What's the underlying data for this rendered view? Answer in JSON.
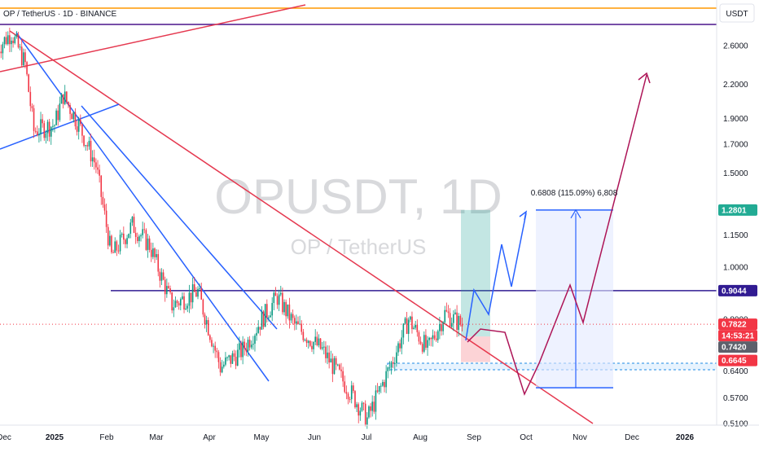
{
  "chart_data": {
    "type": "candlestick",
    "symbol_line": "OP / TetherUS · 1D · BINANCE",
    "watermark": "OPUSDT, 1D",
    "watermark_sub": "OP / TetherUS",
    "currency": "USDT",
    "scale": "log",
    "y_ticks": [
      "2.6000",
      "2.2000",
      "1.9000",
      "1.7000",
      "1.5000",
      "1.1500",
      "1.0000",
      "0.8000",
      "0.6400",
      "0.5700",
      "0.5100"
    ],
    "x_ticks": [
      "Dec",
      "2025",
      "Feb",
      "Mar",
      "Apr",
      "May",
      "Jun",
      "Jul",
      "Aug",
      "Sep",
      "Oct",
      "Nov",
      "Dec",
      "2026"
    ],
    "price_badges": [
      {
        "label": "1.2801",
        "bg": "#22ab94",
        "fg": "#ffffff"
      },
      {
        "label": "0.9044",
        "bg": "#311b92",
        "fg": "#ffffff"
      },
      {
        "label": "0.7822",
        "bg": "#f23645",
        "fg": "#ffffff"
      },
      {
        "label": "14:53:21",
        "bg": "#f23645",
        "fg": "#ffffff"
      },
      {
        "label": "0.7420",
        "bg": "#5d606b",
        "fg": "#ffffff"
      },
      {
        "label": "0.6645",
        "bg": "#f23645",
        "fg": "#ffffff"
      }
    ],
    "horizontal_levels": [
      {
        "price": 0.9044,
        "color": "#311b92"
      }
    ],
    "measure_label": "0.6808 (115.09%) 6,808",
    "candles_approx": [
      {
        "date": "2024-11-28",
        "close": 2.55
      },
      {
        "date": "2024-12-07",
        "close": 2.75
      },
      {
        "date": "2024-12-15",
        "close": 2.4
      },
      {
        "date": "2024-12-20",
        "close": 1.8
      },
      {
        "date": "2025-01-01",
        "close": 1.85
      },
      {
        "date": "2025-01-06",
        "close": 2.1
      },
      {
        "date": "2025-01-15",
        "close": 1.85
      },
      {
        "date": "2025-01-25",
        "close": 1.55
      },
      {
        "date": "2025-02-03",
        "close": 1.05
      },
      {
        "date": "2025-02-15",
        "close": 1.2
      },
      {
        "date": "2025-02-25",
        "close": 1.1
      },
      {
        "date": "2025-03-10",
        "close": 0.85
      },
      {
        "date": "2025-03-25",
        "close": 0.9
      },
      {
        "date": "2025-04-07",
        "close": 0.65
      },
      {
        "date": "2025-04-20",
        "close": 0.7
      },
      {
        "date": "2025-05-01",
        "close": 0.8
      },
      {
        "date": "2025-05-10",
        "close": 0.88
      },
      {
        "date": "2025-05-20",
        "close": 0.78
      },
      {
        "date": "2025-06-05",
        "close": 0.7
      },
      {
        "date": "2025-06-22",
        "close": 0.58
      },
      {
        "date": "2025-07-01",
        "close": 0.52
      },
      {
        "date": "2025-07-15",
        "close": 0.66
      },
      {
        "date": "2025-07-25",
        "close": 0.8
      },
      {
        "date": "2025-08-05",
        "close": 0.7
      },
      {
        "date": "2025-08-15",
        "close": 0.82
      },
      {
        "date": "2025-08-25",
        "close": 0.78
      }
    ],
    "legend": ""
  }
}
